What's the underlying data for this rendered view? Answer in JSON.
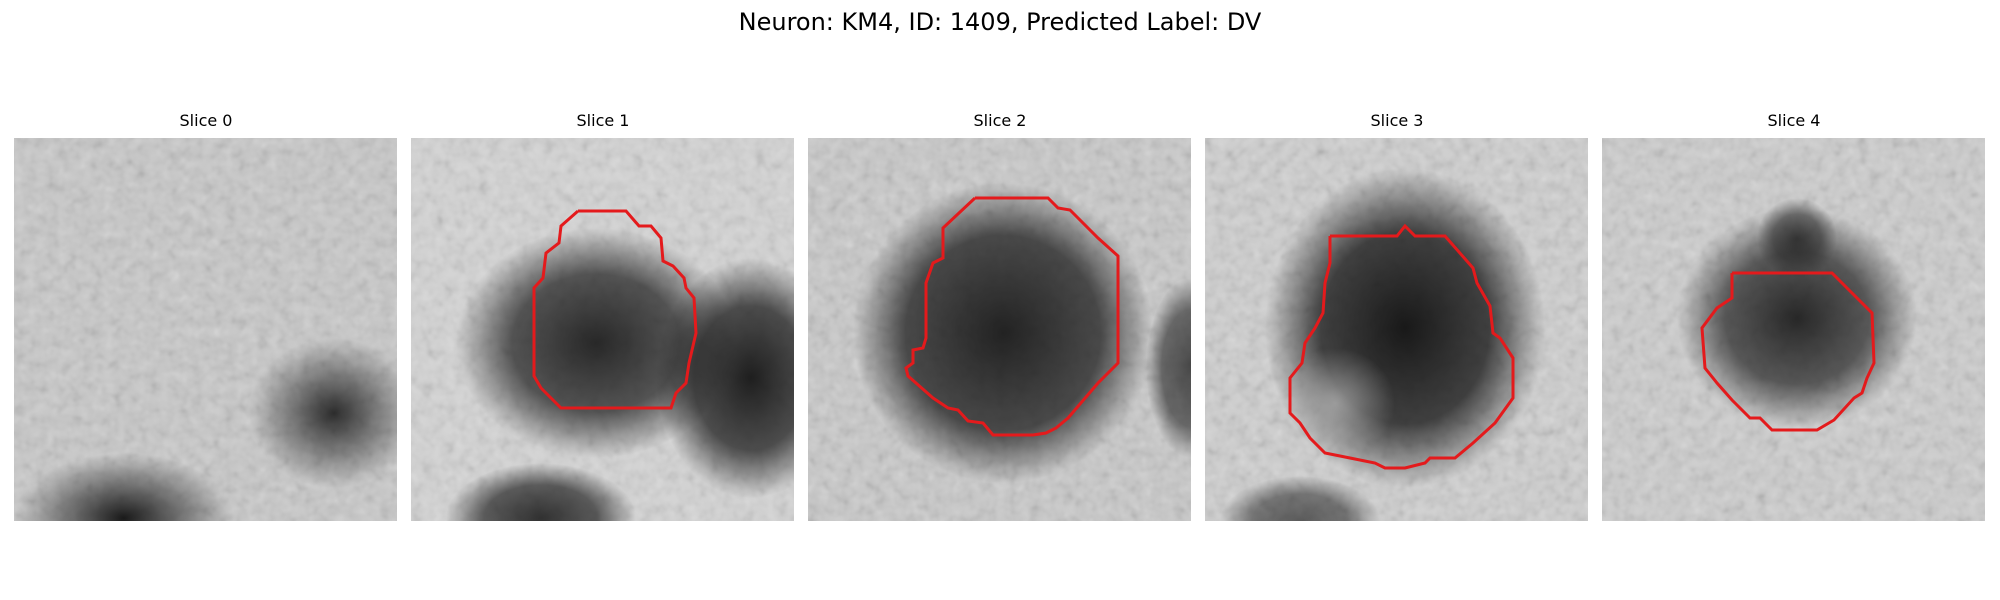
{
  "figure": {
    "title": "Neuron: KM4, ID: 1409, Predicted Label: DV"
  },
  "slices": [
    {
      "label": "Slice 0",
      "has_contour": false
    },
    {
      "label": "Slice 1",
      "has_contour": true
    },
    {
      "label": "Slice 2",
      "has_contour": true
    },
    {
      "label": "Slice 3",
      "has_contour": true
    },
    {
      "label": "Slice 4",
      "has_contour": true
    }
  ],
  "colors": {
    "contour": "#e41a1c",
    "colormap": "grayscale"
  }
}
